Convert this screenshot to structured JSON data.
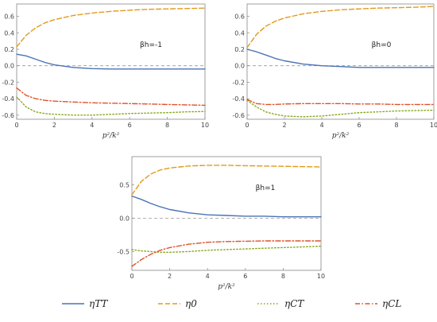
{
  "chart_data": [
    {
      "type": "line",
      "annotation": "βh=-1",
      "xlabel": "p²/k²",
      "xlim": [
        0,
        10
      ],
      "ylim": [
        -0.65,
        0.75
      ],
      "xticks": [
        "0",
        "2",
        "4",
        "6",
        "8",
        "10"
      ],
      "yticks": [
        "0.6",
        "0.4",
        "0.2",
        "0.0",
        "-0.2",
        "-0.4",
        "-0.6"
      ],
      "zero_line": true,
      "series": [
        {
          "name": "ηTT",
          "x": [
            0,
            0.5,
            1,
            1.5,
            2,
            3,
            4,
            5,
            6,
            7,
            8,
            9,
            10
          ],
          "y": [
            0.14,
            0.12,
            0.08,
            0.04,
            0.01,
            -0.02,
            -0.035,
            -0.04,
            -0.04,
            -0.04,
            -0.04,
            -0.04,
            -0.04
          ]
        },
        {
          "name": "η0",
          "x": [
            0,
            0.5,
            1,
            1.5,
            2,
            3,
            4,
            5,
            6,
            7,
            8,
            9,
            10
          ],
          "y": [
            0.23,
            0.37,
            0.46,
            0.52,
            0.56,
            0.61,
            0.64,
            0.66,
            0.675,
            0.685,
            0.69,
            0.695,
            0.7
          ]
        },
        {
          "name": "ηCT",
          "x": [
            0,
            0.5,
            1,
            1.5,
            2,
            3,
            4,
            5,
            6,
            7,
            8,
            9,
            10
          ],
          "y": [
            -0.38,
            -0.5,
            -0.56,
            -0.58,
            -0.59,
            -0.6,
            -0.6,
            -0.59,
            -0.58,
            -0.575,
            -0.57,
            -0.56,
            -0.555
          ]
        },
        {
          "name": "ηCL",
          "x": [
            0,
            0.5,
            1,
            1.5,
            2,
            3,
            4,
            5,
            6,
            7,
            8,
            9,
            10
          ],
          "y": [
            -0.27,
            -0.36,
            -0.4,
            -0.42,
            -0.43,
            -0.44,
            -0.45,
            -0.455,
            -0.46,
            -0.465,
            -0.47,
            -0.475,
            -0.48
          ]
        }
      ]
    },
    {
      "type": "line",
      "annotation": "βh=0",
      "xlabel": "p²/k²",
      "xlim": [
        0,
        10
      ],
      "ylim": [
        -0.65,
        0.75
      ],
      "xticks": [
        "0",
        "2",
        "4",
        "6",
        "8",
        "10"
      ],
      "yticks": [
        "0.6",
        "0.4",
        "0.2",
        "0.0",
        "-0.2",
        "-0.4",
        "-0.6"
      ],
      "zero_line": true,
      "series": [
        {
          "name": "ηTT",
          "x": [
            0,
            0.5,
            1,
            1.5,
            2,
            3,
            4,
            5,
            6,
            7,
            8,
            9,
            10
          ],
          "y": [
            0.2,
            0.17,
            0.13,
            0.09,
            0.06,
            0.02,
            0.0,
            -0.01,
            -0.02,
            -0.02,
            -0.02,
            -0.02,
            -0.02
          ]
        },
        {
          "name": "η0",
          "x": [
            0,
            0.5,
            1,
            1.5,
            2,
            3,
            4,
            5,
            6,
            7,
            8,
            9,
            10
          ],
          "y": [
            0.22,
            0.38,
            0.48,
            0.54,
            0.58,
            0.63,
            0.66,
            0.68,
            0.69,
            0.7,
            0.705,
            0.71,
            0.72
          ]
        },
        {
          "name": "ηCT",
          "x": [
            0,
            0.5,
            1,
            1.5,
            2,
            3,
            4,
            5,
            6,
            7,
            8,
            9,
            10
          ],
          "y": [
            -0.42,
            -0.5,
            -0.56,
            -0.59,
            -0.61,
            -0.62,
            -0.61,
            -0.59,
            -0.57,
            -0.56,
            -0.55,
            -0.545,
            -0.54
          ]
        },
        {
          "name": "ηCL",
          "x": [
            0,
            0.5,
            1,
            1.5,
            2,
            3,
            4,
            5,
            6,
            7,
            8,
            9,
            10
          ],
          "y": [
            -0.41,
            -0.46,
            -0.47,
            -0.47,
            -0.465,
            -0.46,
            -0.46,
            -0.46,
            -0.465,
            -0.465,
            -0.47,
            -0.47,
            -0.47
          ]
        }
      ]
    },
    {
      "type": "line",
      "annotation": "βh=1",
      "xlabel": "p²/k²",
      "xlim": [
        0,
        10
      ],
      "ylim": [
        -0.78,
        0.92
      ],
      "xticks": [
        "0",
        "2",
        "4",
        "6",
        "8",
        "10"
      ],
      "yticks": [
        "0.5",
        "0.0",
        "-0.5"
      ],
      "zero_line": true,
      "series": [
        {
          "name": "ηTT",
          "x": [
            0,
            0.5,
            1,
            1.5,
            2,
            3,
            4,
            5,
            6,
            7,
            8,
            9,
            10
          ],
          "y": [
            0.33,
            0.28,
            0.22,
            0.17,
            0.13,
            0.08,
            0.05,
            0.04,
            0.03,
            0.03,
            0.02,
            0.02,
            0.02
          ]
        },
        {
          "name": "η0",
          "x": [
            0,
            0.5,
            1,
            1.5,
            2,
            3,
            4,
            5,
            6,
            7,
            8,
            9,
            10
          ],
          "y": [
            0.35,
            0.55,
            0.66,
            0.72,
            0.75,
            0.78,
            0.79,
            0.79,
            0.785,
            0.78,
            0.775,
            0.77,
            0.765
          ]
        },
        {
          "name": "ηCT",
          "x": [
            0,
            0.5,
            1,
            1.5,
            2,
            3,
            4,
            5,
            6,
            7,
            8,
            9,
            10
          ],
          "y": [
            -0.47,
            -0.49,
            -0.5,
            -0.51,
            -0.51,
            -0.5,
            -0.48,
            -0.47,
            -0.46,
            -0.45,
            -0.44,
            -0.43,
            -0.42
          ]
        },
        {
          "name": "ηCL",
          "x": [
            0,
            0.5,
            1,
            1.5,
            2,
            3,
            4,
            5,
            6,
            7,
            8,
            9,
            10
          ],
          "y": [
            -0.72,
            -0.62,
            -0.54,
            -0.48,
            -0.44,
            -0.39,
            -0.36,
            -0.35,
            -0.345,
            -0.34,
            -0.34,
            -0.34,
            -0.34
          ]
        }
      ]
    }
  ],
  "legend": [
    {
      "name": "ηTT",
      "color": "#4a73b5",
      "dash": "solid"
    },
    {
      "name": "η0",
      "color": "#e39a1b",
      "dash": "dashed"
    },
    {
      "name": "ηCT",
      "color": "#86a81c",
      "dash": "dotted"
    },
    {
      "name": "ηCL",
      "color": "#e0522a",
      "dash": "dashdot"
    }
  ]
}
